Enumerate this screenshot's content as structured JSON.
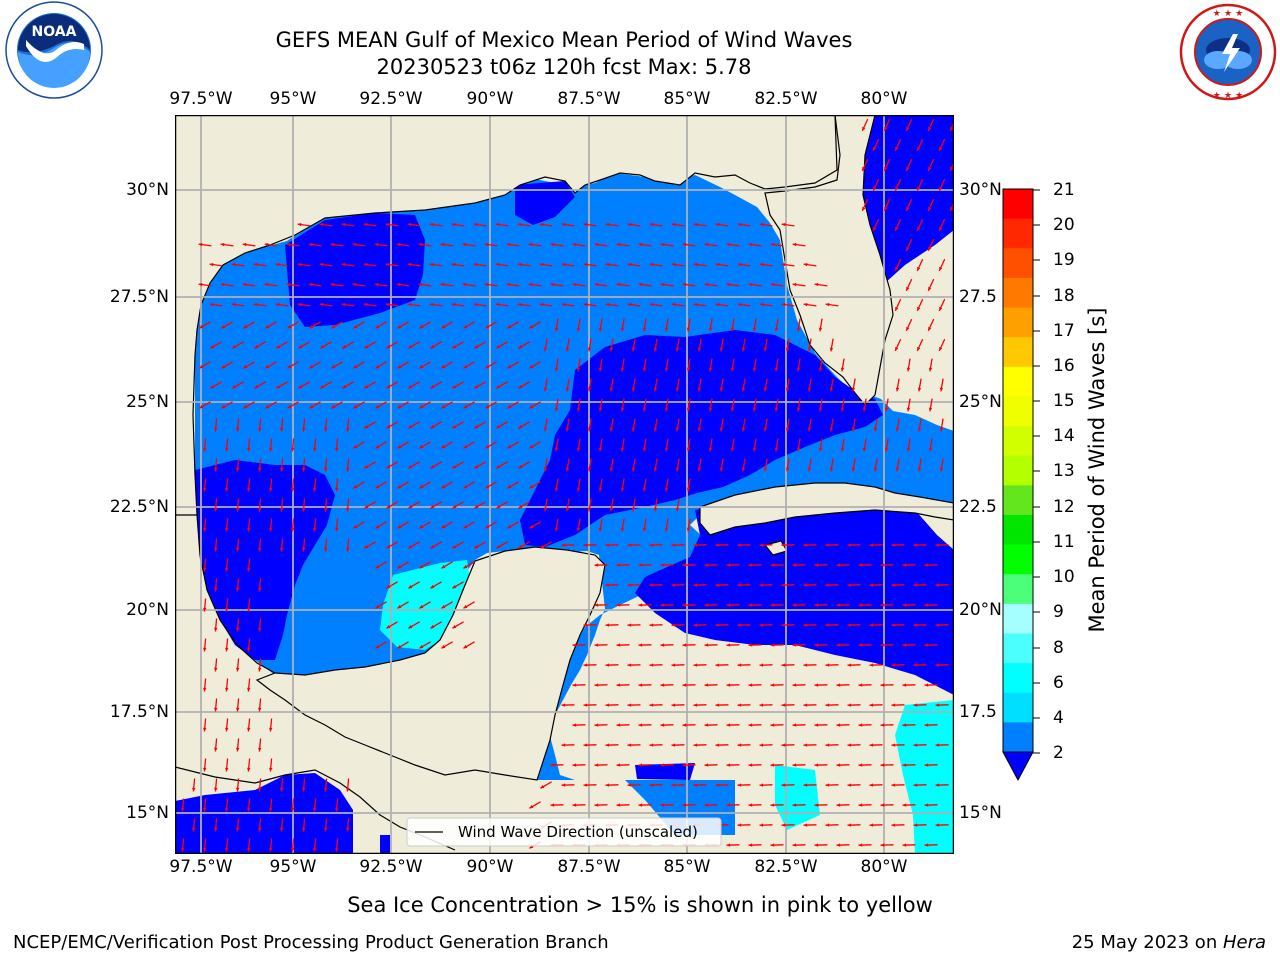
{
  "header": {
    "title_line1": "GEFS MEAN Gulf of Mexico Mean Period of Wind Waves",
    "title_line2": "20230523 t06z 120h fcst   Max: 5.78"
  },
  "logos": {
    "left": {
      "name": "noaa-logo",
      "text": "NOAA",
      "ring_text": "NATIONAL OCEANIC AND ATMOSPHERIC ADMINISTRATION · U.S. DEPARTMENT OF COMMERCE"
    },
    "right": {
      "name": "nws-logo",
      "ring_text": "NATIONAL WEATHER SERVICE"
    }
  },
  "map": {
    "lon_ticks": [
      "97.5°W",
      "95°W",
      "92.5°W",
      "90°W",
      "87.5°W",
      "85°W",
      "82.5°W",
      "80°W"
    ],
    "lat_ticks_left": [
      "30°N",
      "27.5°N",
      "25°N",
      "22.5°N",
      "20°N",
      "17.5°N",
      "15°N"
    ],
    "lat_ticks_right": [
      "30°N",
      "27.5",
      "25°N",
      "22.5",
      "20°N",
      "17.5",
      "15°N"
    ],
    "legend_label": "Wind Wave Direction (unscaled)",
    "colors": {
      "land": "#efedda",
      "grid": "#b0b0b0",
      "arrow": "#ff0000",
      "coast": "#000000"
    }
  },
  "colorbar": {
    "label": "Mean Period of Wind Waves [s]",
    "ticks": [
      "21",
      "20",
      "19",
      "18",
      "17",
      "16",
      "15",
      "14",
      "13",
      "12",
      "11",
      "10",
      "9",
      "8",
      "6",
      "4",
      "2"
    ],
    "colors_top_to_bottom": [
      "#ff0000",
      "#ff2800",
      "#ff5000",
      "#ff7800",
      "#ffa000",
      "#ffc800",
      "#ffff00",
      "#f0ff00",
      "#d2ff00",
      "#b4ff00",
      "#64e61e",
      "#00e600",
      "#00ff00",
      "#4cff7a",
      "#a6ffff",
      "#4cffff",
      "#00ffff",
      "#00dfff",
      "#0080ff"
    ],
    "under_color": "#0000ff"
  },
  "footer": {
    "note": "Sea Ice Concentration > 15% is shown in pink to yellow",
    "credit": "NCEP/EMC/Verification Post Processing Product Generation Branch",
    "date": "25 May 2023 on ",
    "host": "Hera"
  }
}
